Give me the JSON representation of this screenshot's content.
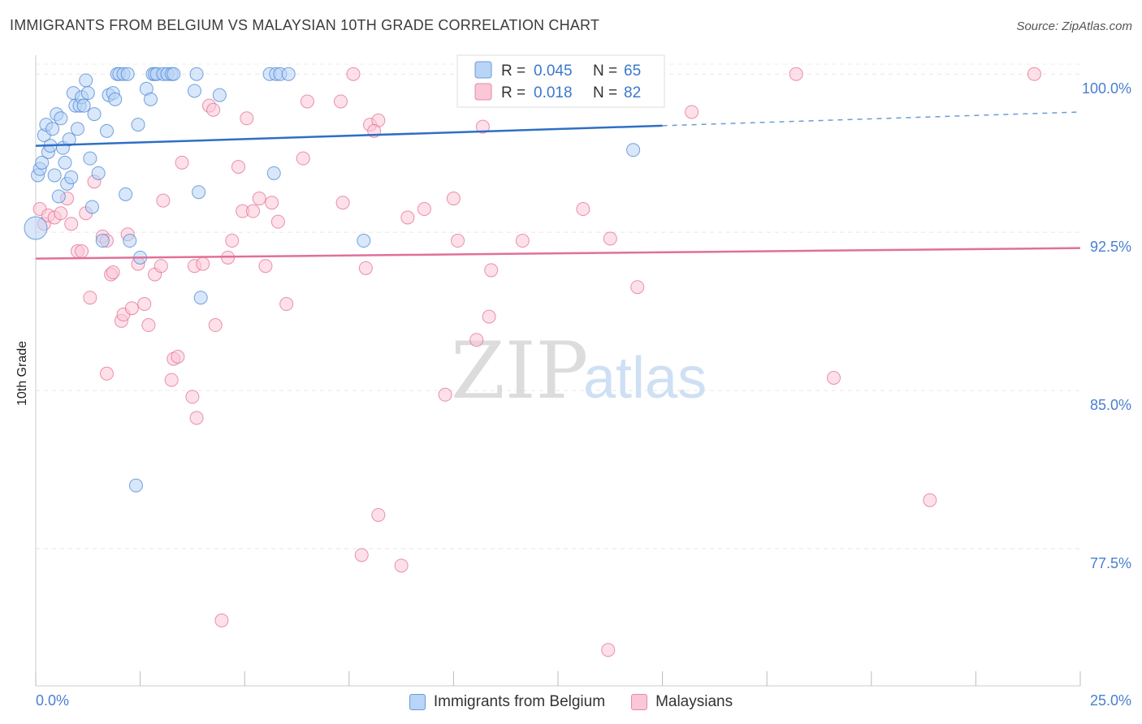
{
  "chart_data": {
    "type": "scatter",
    "title": "IMMIGRANTS FROM BELGIUM VS MALAYSIAN 10TH GRADE CORRELATION CHART",
    "source": "Source: ZipAtlas.com",
    "ylabel": "10th Grade",
    "xlim": [
      0,
      25
    ],
    "ylim": [
      71,
      101.2
    ],
    "x_tick_labels": {
      "left": "0.0%",
      "right": "25.0%"
    },
    "y_ticks": [
      {
        "value": 100.0,
        "label": "100.0%"
      },
      {
        "value": 92.5,
        "label": "92.5%"
      },
      {
        "value": 85.0,
        "label": "85.0%"
      },
      {
        "value": 77.5,
        "label": "77.5%"
      }
    ],
    "grid": true,
    "watermark": {
      "zip": "ZIP",
      "atlas": "atlas"
    },
    "legend_stats": [
      {
        "r_label": "R =",
        "r": "0.045",
        "n_label": "N =",
        "n": "65",
        "color": "#4a85d3"
      },
      {
        "r_label": "R =",
        "r": "0.018",
        "n_label": "N =",
        "n": "82",
        "color": "#e16f95"
      }
    ],
    "series": [
      {
        "name": "Immigrants from Belgium",
        "color": "#4a85d3",
        "fill": "#b8d4f6",
        "trend": {
          "x0": 0,
          "y0": 96.6,
          "x1": 15,
          "y1": 97.55,
          "x_dash_end": 25,
          "y_dash_end": 98.2
        },
        "points": [
          [
            0.05,
            95.2
          ],
          [
            0.1,
            95.5
          ],
          [
            0.15,
            95.8
          ],
          [
            0.2,
            97.1
          ],
          [
            0.25,
            97.6
          ],
          [
            0.3,
            96.3
          ],
          [
            0.35,
            96.6
          ],
          [
            0.4,
            97.4
          ],
          [
            0.45,
            95.2
          ],
          [
            0.5,
            98.1
          ],
          [
            0.55,
            94.2
          ],
          [
            0.6,
            97.9
          ],
          [
            0.65,
            96.5
          ],
          [
            0.7,
            95.8
          ],
          [
            0.75,
            94.8
          ],
          [
            0.8,
            96.9
          ],
          [
            0.85,
            95.1
          ],
          [
            0.9,
            99.1
          ],
          [
            0.95,
            98.5
          ],
          [
            1.0,
            97.4
          ],
          [
            1.05,
            98.5
          ],
          [
            1.1,
            98.9
          ],
          [
            1.15,
            98.5
          ],
          [
            1.2,
            99.7
          ],
          [
            1.25,
            99.1
          ],
          [
            1.3,
            96.0
          ],
          [
            1.35,
            93.7
          ],
          [
            1.4,
            98.1
          ],
          [
            1.5,
            95.3
          ],
          [
            1.6,
            92.1
          ],
          [
            1.7,
            97.3
          ],
          [
            1.75,
            99.0
          ],
          [
            1.85,
            99.1
          ],
          [
            1.9,
            98.8
          ],
          [
            1.95,
            100.0
          ],
          [
            2.0,
            100.0
          ],
          [
            2.1,
            100.0
          ],
          [
            2.2,
            100.0
          ],
          [
            2.15,
            94.3
          ],
          [
            2.25,
            92.1
          ],
          [
            2.4,
            80.5
          ],
          [
            2.45,
            97.6
          ],
          [
            2.5,
            91.3
          ],
          [
            2.65,
            99.3
          ],
          [
            2.75,
            98.8
          ],
          [
            2.8,
            100.0
          ],
          [
            2.85,
            100.0
          ],
          [
            2.9,
            100.0
          ],
          [
            3.05,
            100.0
          ],
          [
            3.15,
            100.0
          ],
          [
            3.25,
            100.0
          ],
          [
            3.3,
            100.0
          ],
          [
            3.8,
            99.2
          ],
          [
            3.85,
            100.0
          ],
          [
            3.9,
            94.4
          ],
          [
            3.95,
            89.4
          ],
          [
            4.4,
            99.0
          ],
          [
            5.6,
            100.0
          ],
          [
            5.7,
            95.3
          ],
          [
            5.75,
            100.0
          ],
          [
            5.85,
            100.0
          ],
          [
            6.05,
            100.0
          ],
          [
            7.85,
            92.1
          ],
          [
            14.3,
            96.4
          ],
          [
            0.0,
            92.7
          ]
        ]
      },
      {
        "name": "Malaysians",
        "color": "#e16f95",
        "fill": "#fbc6d6",
        "trend": {
          "x0": 0,
          "y0": 91.25,
          "x1": 25,
          "y1": 91.75
        },
        "points": [
          [
            0.1,
            93.6
          ],
          [
            0.2,
            92.9
          ],
          [
            0.3,
            93.3
          ],
          [
            0.45,
            93.2
          ],
          [
            0.6,
            93.4
          ],
          [
            0.75,
            94.1
          ],
          [
            0.85,
            92.9
          ],
          [
            1.0,
            91.6
          ],
          [
            1.1,
            91.6
          ],
          [
            1.2,
            93.4
          ],
          [
            1.3,
            89.4
          ],
          [
            1.4,
            94.9
          ],
          [
            1.6,
            92.3
          ],
          [
            1.7,
            92.1
          ],
          [
            1.7,
            85.8
          ],
          [
            1.8,
            90.5
          ],
          [
            1.85,
            90.6
          ],
          [
            2.05,
            88.3
          ],
          [
            2.1,
            88.6
          ],
          [
            2.2,
            92.4
          ],
          [
            2.3,
            88.9
          ],
          [
            2.45,
            91.0
          ],
          [
            2.6,
            89.1
          ],
          [
            2.7,
            88.1
          ],
          [
            2.85,
            90.5
          ],
          [
            3.0,
            90.9
          ],
          [
            3.05,
            94.0
          ],
          [
            3.25,
            85.5
          ],
          [
            3.3,
            86.5
          ],
          [
            3.4,
            86.6
          ],
          [
            3.5,
            95.8
          ],
          [
            3.75,
            84.7
          ],
          [
            3.8,
            90.9
          ],
          [
            3.85,
            83.7
          ],
          [
            4.0,
            91.0
          ],
          [
            4.15,
            98.5
          ],
          [
            4.25,
            98.3
          ],
          [
            4.3,
            88.1
          ],
          [
            4.45,
            74.1
          ],
          [
            4.6,
            91.3
          ],
          [
            4.7,
            92.1
          ],
          [
            4.85,
            95.6
          ],
          [
            4.95,
            93.5
          ],
          [
            5.05,
            97.9
          ],
          [
            5.2,
            93.5
          ],
          [
            5.35,
            94.1
          ],
          [
            5.5,
            90.9
          ],
          [
            5.65,
            93.9
          ],
          [
            5.8,
            93.0
          ],
          [
            6.0,
            89.1
          ],
          [
            6.4,
            96.0
          ],
          [
            6.5,
            98.7
          ],
          [
            7.3,
            98.7
          ],
          [
            7.35,
            93.9
          ],
          [
            7.6,
            100.0
          ],
          [
            7.8,
            77.2
          ],
          [
            7.9,
            90.8
          ],
          [
            8.0,
            97.6
          ],
          [
            8.2,
            97.8
          ],
          [
            8.2,
            79.1
          ],
          [
            8.1,
            97.3
          ],
          [
            8.75,
            76.7
          ],
          [
            8.9,
            93.2
          ],
          [
            9.3,
            93.6
          ],
          [
            9.8,
            84.8
          ],
          [
            10.0,
            94.1
          ],
          [
            10.1,
            92.1
          ],
          [
            10.55,
            87.4
          ],
          [
            10.7,
            97.5
          ],
          [
            10.85,
            88.5
          ],
          [
            10.9,
            90.7
          ],
          [
            11.65,
            92.1
          ],
          [
            13.1,
            93.6
          ],
          [
            13.7,
            72.7
          ],
          [
            13.75,
            92.2
          ],
          [
            14.0,
            100.0
          ],
          [
            14.4,
            89.9
          ],
          [
            15.7,
            98.2
          ],
          [
            18.2,
            100.0
          ],
          [
            19.1,
            85.6
          ],
          [
            21.4,
            79.8
          ],
          [
            23.9,
            100.0
          ]
        ]
      }
    ]
  }
}
